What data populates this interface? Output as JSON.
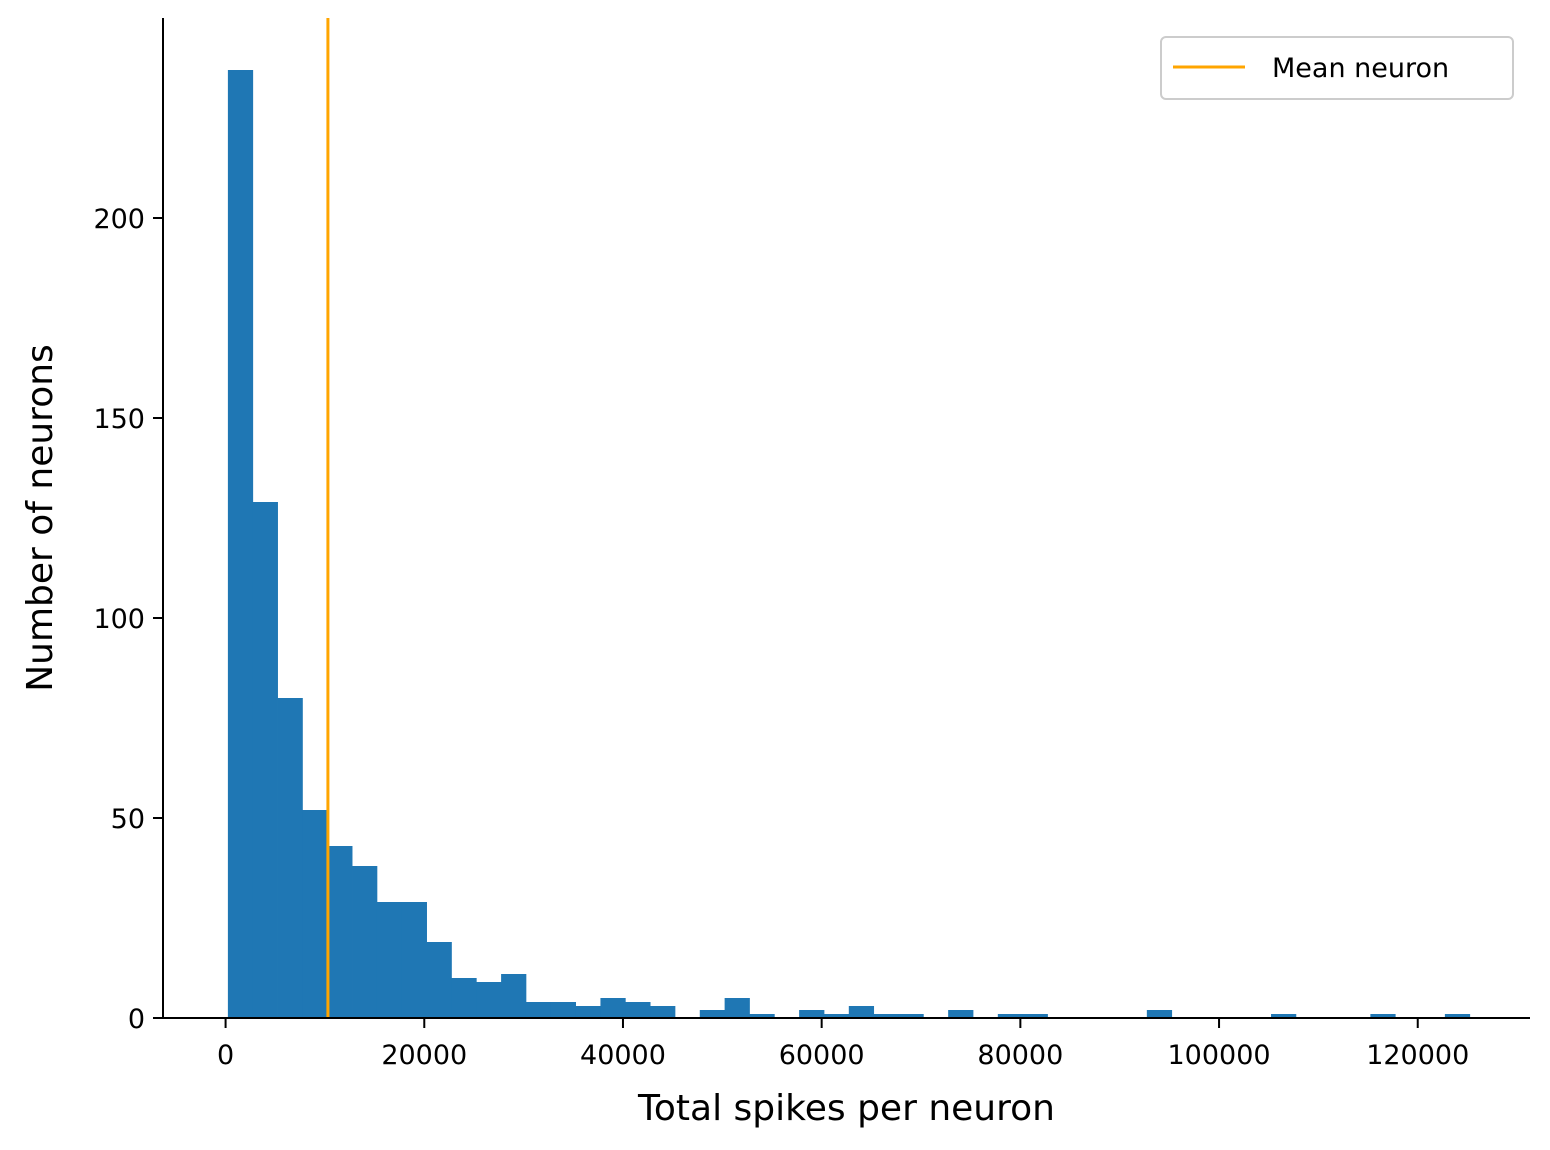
{
  "chart_data": {
    "type": "bar",
    "title": "",
    "xlabel": "Total spikes per neuron",
    "ylabel": "Number of neurons",
    "xlim": [
      -6300,
      131300
    ],
    "ylim": [
      0,
      250
    ],
    "bin_start": 232,
    "bin_width": 2500,
    "counts": [
      237,
      129,
      80,
      52,
      43,
      38,
      29,
      29,
      19,
      10,
      9,
      11,
      4,
      4,
      3,
      5,
      4,
      3,
      0,
      2,
      5,
      1,
      0,
      2,
      1,
      3,
      1,
      1,
      0,
      2,
      0,
      1,
      1,
      0,
      0,
      0,
      0,
      2,
      0,
      0,
      0,
      0,
      1,
      0,
      0,
      0,
      1,
      0,
      0,
      1
    ],
    "xticks": [
      0,
      20000,
      40000,
      60000,
      80000,
      100000,
      120000
    ],
    "xtick_labels": [
      "0",
      "20000",
      "40000",
      "60000",
      "80000",
      "100000",
      "120000"
    ],
    "yticks": [
      0,
      50,
      100,
      150,
      200
    ],
    "ytick_labels": [
      "0",
      "50",
      "100",
      "150",
      "200"
    ],
    "mean_line": {
      "x": 10300,
      "label": "Mean neuron",
      "color": "#ffa500"
    },
    "bar_color": "#1f77b4",
    "grid": false,
    "legend": {
      "placement": "top-right",
      "entries": [
        "Mean neuron"
      ]
    }
  }
}
